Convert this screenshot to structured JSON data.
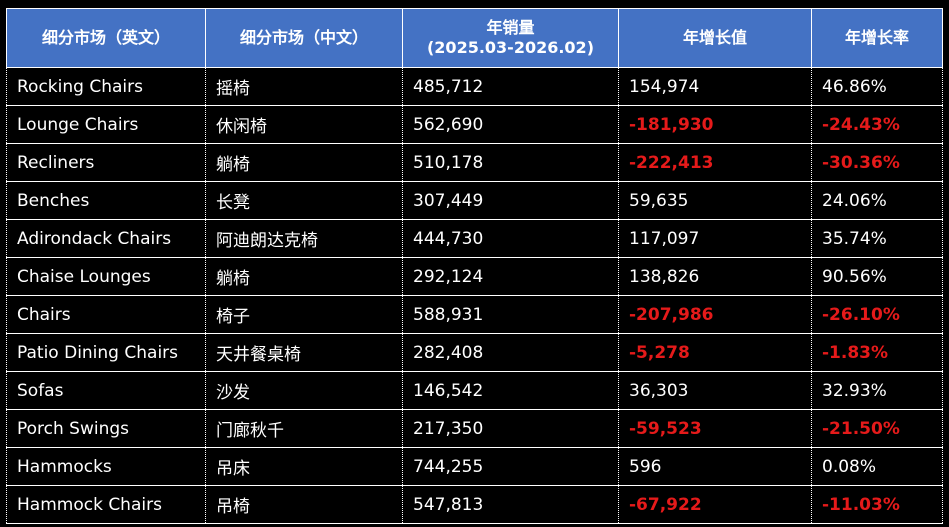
{
  "headers": [
    "细分市场（英文）",
    "细分市场（中文）",
    "年销量",
    "(2025.03-2026.02)",
    "年增长值",
    "年增长率"
  ],
  "rows": [
    {
      "en": "Rocking Chairs",
      "zh": "摇椅",
      "sales": "485,712",
      "growth": "154,974",
      "rate": "46.86%"
    },
    {
      "en": "Lounge Chairs",
      "zh": "休闲椅",
      "sales": "562,690",
      "growth": "-181,930",
      "rate": "-24.43%"
    },
    {
      "en": "Recliners",
      "zh": "躺椅",
      "sales": "510,178",
      "growth": "-222,413",
      "rate": "-30.36%"
    },
    {
      "en": "Benches",
      "zh": "长凳",
      "sales": "307,449",
      "growth": "59,635",
      "rate": "24.06%"
    },
    {
      "en": "Adirondack Chairs",
      "zh": "阿迪朗达克椅",
      "sales": "444,730",
      "growth": "117,097",
      "rate": "35.74%"
    },
    {
      "en": "Chaise Lounges",
      "zh": "躺椅",
      "sales": "292,124",
      "growth": "138,826",
      "rate": "90.56%"
    },
    {
      "en": "Chairs",
      "zh": "椅子",
      "sales": "588,931",
      "growth": "-207,986",
      "rate": "-26.10%"
    },
    {
      "en": "Patio Dining Chairs",
      "zh": "天井餐桌椅",
      "sales": "282,408",
      "growth": "-5,278",
      "rate": "-1.83%"
    },
    {
      "en": "Sofas",
      "zh": "沙发",
      "sales": "146,542",
      "growth": "36,303",
      "rate": "32.93%"
    },
    {
      "en": "Porch Swings",
      "zh": "门廊秋千",
      "sales": "217,350",
      "growth": "-59,523",
      "rate": "-21.50%"
    },
    {
      "en": "Hammocks",
      "zh": "吊床",
      "sales": "744,255",
      "growth": "596",
      "rate": "0.08%"
    },
    {
      "en": "Hammock Chairs",
      "zh": "吊椅",
      "sales": "547,813",
      "growth": "-67,922",
      "rate": "-11.03%"
    }
  ],
  "colors": {
    "header_bg": "#4472c4",
    "negative": "#e51a1a",
    "text": "#ffffff",
    "background": "#000000"
  }
}
